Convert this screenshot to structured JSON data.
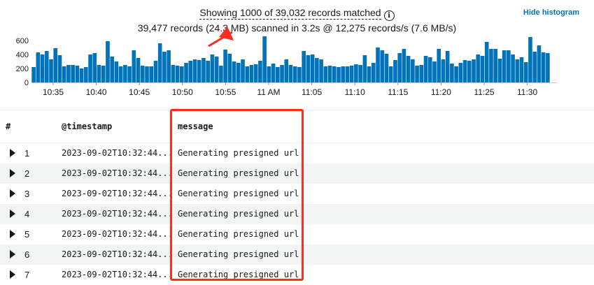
{
  "summary": {
    "line1": "Showing 1000 of 39,032 records matched",
    "line2": "39,477 records (24.3 MB) scanned in 3.2s @ 12,275 records/s (7.6 MB/s)",
    "info_icon": "info-icon"
  },
  "hide_histogram_label": "Hide histogram",
  "colors": {
    "bar": "#0073bb",
    "link": "#0073bb",
    "highlight": "#ff2d1a",
    "arrow": "#ff2d1a"
  },
  "chart_data": {
    "type": "bar",
    "ylim": [
      0,
      600
    ],
    "y_ticks": [
      "0",
      "200",
      "400",
      "600"
    ],
    "x_ticks": [
      "10:35",
      "10:40",
      "10:45",
      "10:50",
      "10:55",
      "11 AM",
      "11:05",
      "11:10",
      "11:15",
      "11:20",
      "11:25",
      "11:30"
    ],
    "values": [
      220,
      430,
      400,
      450,
      330,
      490,
      390,
      230,
      250,
      250,
      240,
      200,
      220,
      400,
      420,
      250,
      240,
      590,
      370,
      300,
      230,
      250,
      230,
      460,
      350,
      240,
      230,
      230,
      310,
      560,
      440,
      460,
      250,
      240,
      230,
      280,
      310,
      330,
      320,
      350,
      310,
      400,
      370,
      240,
      470,
      410,
      300,
      280,
      330,
      230,
      250,
      260,
      310,
      660,
      230,
      270,
      220,
      250,
      330,
      250,
      230,
      220,
      450,
      390,
      400,
      350,
      330,
      230,
      240,
      230,
      220,
      230,
      230,
      240,
      260,
      250,
      390,
      230,
      280,
      500,
      460,
      410,
      230,
      320,
      420,
      480,
      380,
      330,
      240,
      250,
      380,
      360,
      300,
      480,
      330,
      450,
      270,
      230,
      280,
      320,
      310,
      330,
      400,
      380,
      580,
      480,
      480,
      340,
      460,
      460,
      400,
      330,
      360,
      290,
      650,
      440,
      530,
      430,
      420
    ],
    "highlight_range": [
      60,
      66
    ]
  },
  "table": {
    "columns": {
      "index": "#",
      "timestamp": "@timestamp",
      "message": "message"
    },
    "rows": [
      {
        "index": "1",
        "timestamp": "2023-09-02T10:32:44...",
        "message": "Generating presigned url"
      },
      {
        "index": "2",
        "timestamp": "2023-09-02T10:32:44...",
        "message": "Generating presigned url"
      },
      {
        "index": "3",
        "timestamp": "2023-09-02T10:32:44...",
        "message": "Generating presigned url"
      },
      {
        "index": "4",
        "timestamp": "2023-09-02T10:32:44...",
        "message": "Generating presigned url"
      },
      {
        "index": "5",
        "timestamp": "2023-09-02T10:32:44...",
        "message": "Generating presigned url"
      },
      {
        "index": "6",
        "timestamp": "2023-09-02T10:32:44...",
        "message": "Generating presigned url"
      },
      {
        "index": "7",
        "timestamp": "2023-09-02T10:32:44...",
        "message": "Generating presigned url"
      }
    ]
  }
}
